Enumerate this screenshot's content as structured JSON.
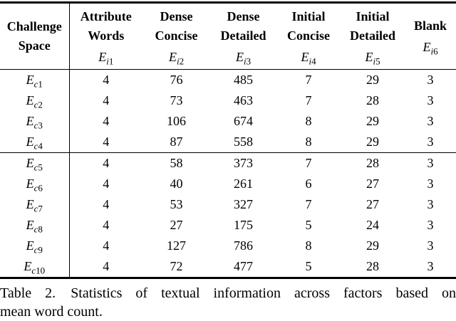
{
  "table": {
    "row_header": {
      "line1": "Challenge",
      "line2": "Space"
    },
    "columns": [
      {
        "title_line1": "Attribute",
        "title_line2": "Words",
        "var_letter": "E",
        "sub_letter": "i",
        "sub_num": "1"
      },
      {
        "title_line1": "Dense",
        "title_line2": "Concise",
        "var_letter": "E",
        "sub_letter": "i",
        "sub_num": "2"
      },
      {
        "title_line1": "Dense",
        "title_line2": "Detailed",
        "var_letter": "E",
        "sub_letter": "i",
        "sub_num": "3"
      },
      {
        "title_line1": "Initial",
        "title_line2": "Concise",
        "var_letter": "E",
        "sub_letter": "i",
        "sub_num": "4"
      },
      {
        "title_line1": "Initial",
        "title_line2": "Detailed",
        "var_letter": "E",
        "sub_letter": "i",
        "sub_num": "5"
      },
      {
        "title_line1": "Blank",
        "title_line2": "",
        "var_letter": "E",
        "sub_letter": "i",
        "sub_num": "6"
      }
    ],
    "groups": [
      {
        "rows": [
          {
            "var_letter": "E",
            "sub_letter": "c",
            "sub_num": "1",
            "values": [
              "4",
              "76",
              "485",
              "7",
              "29",
              "3"
            ]
          },
          {
            "var_letter": "E",
            "sub_letter": "c",
            "sub_num": "2",
            "values": [
              "4",
              "73",
              "463",
              "7",
              "28",
              "3"
            ]
          },
          {
            "var_letter": "E",
            "sub_letter": "c",
            "sub_num": "3",
            "values": [
              "4",
              "106",
              "674",
              "8",
              "29",
              "3"
            ]
          },
          {
            "var_letter": "E",
            "sub_letter": "c",
            "sub_num": "4",
            "values": [
              "4",
              "87",
              "558",
              "8",
              "29",
              "3"
            ]
          }
        ]
      },
      {
        "rows": [
          {
            "var_letter": "E",
            "sub_letter": "c",
            "sub_num": "5",
            "values": [
              "4",
              "58",
              "373",
              "7",
              "28",
              "3"
            ]
          },
          {
            "var_letter": "E",
            "sub_letter": "c",
            "sub_num": "6",
            "values": [
              "4",
              "40",
              "261",
              "6",
              "27",
              "3"
            ]
          },
          {
            "var_letter": "E",
            "sub_letter": "c",
            "sub_num": "7",
            "values": [
              "4",
              "53",
              "327",
              "7",
              "27",
              "3"
            ]
          },
          {
            "var_letter": "E",
            "sub_letter": "c",
            "sub_num": "8",
            "values": [
              "4",
              "27",
              "175",
              "5",
              "24",
              "3"
            ]
          },
          {
            "var_letter": "E",
            "sub_letter": "c",
            "sub_num": "9",
            "values": [
              "4",
              "127",
              "786",
              "8",
              "29",
              "3"
            ]
          },
          {
            "var_letter": "E",
            "sub_letter": "c",
            "sub_num": "10",
            "values": [
              "4",
              "72",
              "477",
              "5",
              "28",
              "3"
            ]
          }
        ]
      }
    ]
  },
  "caption": {
    "line1_label": "Table 2.",
    "line1_text": "Statistics of textual information across factors based on",
    "line2_text": "mean word count."
  }
}
